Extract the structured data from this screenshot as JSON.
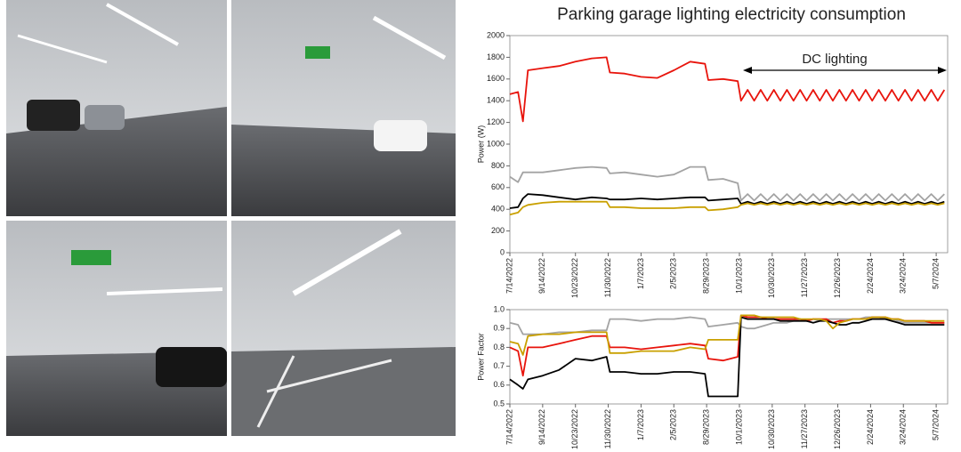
{
  "chart_data": [
    {
      "type": "line",
      "title": "Parking garage lighting electricity consumption",
      "ylabel": "Power (W)",
      "annotation": "DC lighting",
      "x": [
        0,
        0.25,
        0.4,
        0.55,
        1,
        1.5,
        2,
        2.5,
        2.95,
        3.05,
        3.5,
        4,
        4.5,
        5,
        5.5,
        5.95,
        6.05,
        6.5,
        6.95,
        7.05,
        7.25,
        7.45,
        7.65,
        7.85,
        8.05,
        8.25,
        8.45,
        8.65,
        8.85,
        9.05,
        9.25,
        9.45,
        9.65,
        9.85,
        10.05,
        10.25,
        10.45,
        10.65,
        10.85,
        11.05,
        11.25,
        11.45,
        11.65,
        11.85,
        12.05,
        12.25,
        12.45,
        12.65,
        12.85,
        13.05,
        13.25
      ],
      "xlim": [
        0,
        13.35
      ],
      "xticks": [
        {
          "value": 0,
          "label": "7/14/2022"
        },
        {
          "value": 1,
          "label": "9/14/2022"
        },
        {
          "value": 2,
          "label": "10/23/2022"
        },
        {
          "value": 3,
          "label": "11/30/2022"
        },
        {
          "value": 4,
          "label": "1/7/2023"
        },
        {
          "value": 5,
          "label": "2/5/2023"
        },
        {
          "value": 6,
          "label": "8/29/2023"
        },
        {
          "value": 7,
          "label": "10/1/2023"
        },
        {
          "value": 8,
          "label": "10/30/2023"
        },
        {
          "value": 9,
          "label": "11/27/2023"
        },
        {
          "value": 10,
          "label": "12/26/2023"
        },
        {
          "value": 11,
          "label": "2/24/2024"
        },
        {
          "value": 12,
          "label": "3/24/2024"
        },
        {
          "value": 13,
          "label": "5/7/2024"
        }
      ],
      "ylim": [
        0,
        2000
      ],
      "yticks": [
        0,
        200,
        400,
        600,
        800,
        1000,
        1200,
        1400,
        1600,
        1800,
        2000
      ],
      "series": [
        {
          "color": "#a3a3a3",
          "values": [
            700,
            650,
            740,
            740,
            740,
            760,
            780,
            790,
            780,
            730,
            740,
            720,
            700,
            720,
            790,
            790,
            670,
            680,
            640,
            480,
            540,
            480,
            540,
            480,
            540,
            480,
            540,
            480,
            540,
            480,
            540,
            480,
            540,
            480,
            540,
            480,
            540,
            480,
            540,
            480,
            540,
            480,
            540,
            480,
            540,
            480,
            540,
            480,
            540,
            480,
            540
          ]
        },
        {
          "color": "#e8140c",
          "values": [
            1460,
            1480,
            1210,
            1680,
            1700,
            1720,
            1760,
            1790,
            1800,
            1660,
            1650,
            1620,
            1610,
            1680,
            1760,
            1740,
            1590,
            1600,
            1580,
            1400,
            1500,
            1400,
            1500,
            1400,
            1500,
            1400,
            1500,
            1400,
            1500,
            1400,
            1500,
            1400,
            1500,
            1400,
            1500,
            1400,
            1500,
            1400,
            1500,
            1400,
            1500,
            1400,
            1500,
            1400,
            1500,
            1400,
            1500,
            1400,
            1500,
            1400,
            1500
          ]
        },
        {
          "color": "#000000",
          "values": [
            410,
            420,
            500,
            540,
            530,
            510,
            490,
            510,
            500,
            490,
            490,
            500,
            490,
            500,
            510,
            510,
            480,
            490,
            500,
            450,
            470,
            450,
            470,
            450,
            470,
            450,
            470,
            450,
            470,
            450,
            470,
            450,
            470,
            450,
            470,
            450,
            470,
            450,
            470,
            450,
            470,
            450,
            470,
            450,
            470,
            450,
            470,
            450,
            470,
            450,
            470
          ]
        },
        {
          "color": "#c9a000",
          "values": [
            350,
            370,
            420,
            440,
            460,
            470,
            470,
            470,
            470,
            420,
            420,
            410,
            410,
            410,
            420,
            420,
            390,
            400,
            420,
            440,
            455,
            440,
            455,
            440,
            455,
            440,
            455,
            440,
            455,
            440,
            455,
            440,
            455,
            440,
            455,
            440,
            455,
            440,
            455,
            440,
            455,
            440,
            455,
            440,
            455,
            440,
            455,
            440,
            455,
            440,
            455
          ]
        }
      ]
    },
    {
      "type": "line",
      "ylabel": "Power Factor",
      "x": [
        0,
        0.25,
        0.4,
        0.55,
        1,
        1.5,
        2,
        2.5,
        2.95,
        3.05,
        3.5,
        4,
        4.5,
        5,
        5.5,
        5.95,
        6.05,
        6.5,
        6.95,
        7.05,
        7.25,
        7.45,
        7.65,
        7.85,
        8.05,
        8.25,
        8.45,
        8.65,
        8.85,
        9.05,
        9.25,
        9.45,
        9.65,
        9.85,
        10.05,
        10.25,
        10.45,
        10.65,
        10.85,
        11.05,
        11.25,
        11.45,
        11.65,
        11.85,
        12.05,
        12.25,
        12.45,
        12.65,
        12.85,
        13.05,
        13.25
      ],
      "xlim": [
        0,
        13.35
      ],
      "xticks": [
        {
          "value": 0,
          "label": "7/14/2022"
        },
        {
          "value": 1,
          "label": "9/14/2022"
        },
        {
          "value": 2,
          "label": "10/23/2022"
        },
        {
          "value": 3,
          "label": "11/30/2022"
        },
        {
          "value": 4,
          "label": "1/7/2023"
        },
        {
          "value": 5,
          "label": "2/5/2023"
        },
        {
          "value": 6,
          "label": "8/29/2023"
        },
        {
          "value": 7,
          "label": "10/1/2023"
        },
        {
          "value": 8,
          "label": "10/30/2023"
        },
        {
          "value": 9,
          "label": "11/27/2023"
        },
        {
          "value": 10,
          "label": "12/26/2023"
        },
        {
          "value": 11,
          "label": "2/24/2024"
        },
        {
          "value": 12,
          "label": "3/24/2024"
        },
        {
          "value": 13,
          "label": "5/7/2024"
        }
      ],
      "ylim": [
        0.5,
        1.0
      ],
      "yticks": [
        0.5,
        0.6,
        0.7,
        0.8,
        0.9,
        {
          "value": 1.0,
          "label": "1.0"
        }
      ],
      "series": [
        {
          "color": "#a3a3a3",
          "values": [
            0.93,
            0.92,
            0.87,
            0.87,
            0.87,
            0.88,
            0.88,
            0.89,
            0.89,
            0.95,
            0.95,
            0.94,
            0.95,
            0.95,
            0.96,
            0.95,
            0.91,
            0.92,
            0.93,
            0.91,
            0.9,
            0.9,
            0.91,
            0.92,
            0.93,
            0.93,
            0.93,
            0.94,
            0.94,
            0.94,
            0.95,
            0.94,
            0.95,
            0.95,
            0.95,
            0.95,
            0.95,
            0.95,
            0.96,
            0.96,
            0.96,
            0.95,
            0.95,
            0.94,
            0.93,
            0.93,
            0.93,
            0.93,
            0.93,
            0.93,
            0.93
          ]
        },
        {
          "color": "#e8140c",
          "values": [
            0.8,
            0.78,
            0.65,
            0.8,
            0.8,
            0.82,
            0.84,
            0.86,
            0.86,
            0.8,
            0.8,
            0.79,
            0.8,
            0.81,
            0.82,
            0.81,
            0.74,
            0.73,
            0.75,
            0.97,
            0.96,
            0.96,
            0.96,
            0.95,
            0.95,
            0.95,
            0.95,
            0.95,
            0.95,
            0.94,
            0.95,
            0.95,
            0.95,
            0.93,
            0.94,
            0.94,
            0.95,
            0.95,
            0.95,
            0.96,
            0.96,
            0.96,
            0.95,
            0.95,
            0.94,
            0.94,
            0.94,
            0.94,
            0.93,
            0.93,
            0.93
          ]
        },
        {
          "color": "#000000",
          "values": [
            0.63,
            0.6,
            0.58,
            0.63,
            0.65,
            0.68,
            0.74,
            0.73,
            0.75,
            0.67,
            0.67,
            0.66,
            0.66,
            0.67,
            0.67,
            0.66,
            0.54,
            0.54,
            0.54,
            0.96,
            0.95,
            0.95,
            0.95,
            0.95,
            0.95,
            0.94,
            0.94,
            0.94,
            0.94,
            0.94,
            0.93,
            0.94,
            0.94,
            0.93,
            0.92,
            0.92,
            0.93,
            0.93,
            0.94,
            0.95,
            0.95,
            0.95,
            0.94,
            0.93,
            0.92,
            0.92,
            0.92,
            0.92,
            0.92,
            0.92,
            0.92
          ]
        },
        {
          "color": "#c9a000",
          "values": [
            0.83,
            0.82,
            0.76,
            0.86,
            0.87,
            0.87,
            0.88,
            0.88,
            0.88,
            0.77,
            0.77,
            0.78,
            0.78,
            0.78,
            0.8,
            0.79,
            0.84,
            0.84,
            0.84,
            0.97,
            0.97,
            0.97,
            0.96,
            0.96,
            0.96,
            0.96,
            0.96,
            0.96,
            0.95,
            0.95,
            0.95,
            0.95,
            0.94,
            0.9,
            0.93,
            0.94,
            0.95,
            0.95,
            0.95,
            0.96,
            0.96,
            0.96,
            0.95,
            0.95,
            0.94,
            0.94,
            0.94,
            0.94,
            0.94,
            0.94,
            0.94
          ]
        }
      ]
    }
  ]
}
